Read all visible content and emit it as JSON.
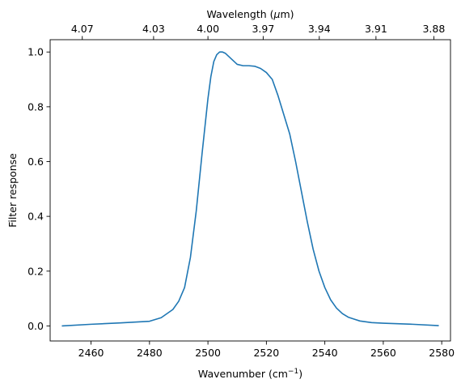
{
  "chart_data": {
    "type": "line",
    "xlabel_text": "Wavenumber (cm",
    "xlabel_sup": "−1",
    "xlabel_close": ")",
    "ylabel": "Filter response",
    "top_xlabel_text": "Wavelength (",
    "top_xlabel_mu": "μ",
    "top_xlabel_close": "m)",
    "xlim": [
      2446,
      2583
    ],
    "ylim": [
      -0.055,
      1.045
    ],
    "x_ticks": [
      2460,
      2480,
      2500,
      2520,
      2540,
      2560,
      2580
    ],
    "x_tick_labels": [
      "2460",
      "2480",
      "2500",
      "2520",
      "2540",
      "2560",
      "2580"
    ],
    "y_ticks": [
      0.0,
      0.2,
      0.4,
      0.6,
      0.8,
      1.0
    ],
    "y_tick_labels": [
      "0.0",
      "0.2",
      "0.4",
      "0.6",
      "0.8",
      "1.0"
    ],
    "top_ticks": [
      {
        "wavenumber": 2457.0,
        "label": "4.07"
      },
      {
        "wavenumber": 2481.4,
        "label": "4.03"
      },
      {
        "wavenumber": 2500.0,
        "label": "4.00"
      },
      {
        "wavenumber": 2518.9,
        "label": "3.97"
      },
      {
        "wavenumber": 2538.1,
        "label": "3.94"
      },
      {
        "wavenumber": 2557.5,
        "label": "3.91"
      },
      {
        "wavenumber": 2577.3,
        "label": "3.88"
      }
    ],
    "series": [
      {
        "color": "#1f77b4",
        "x": [
          2450,
          2460,
          2470,
          2480,
          2484,
          2488,
          2490,
          2492,
          2494,
          2496,
          2498,
          2500,
          2501,
          2502,
          2503,
          2504,
          2505,
          2506,
          2507,
          2508,
          2510,
          2512,
          2514,
          2516,
          2518,
          2520,
          2522,
          2524,
          2526,
          2528,
          2530,
          2532,
          2534,
          2536,
          2538,
          2540,
          2542,
          2544,
          2546,
          2548,
          2550,
          2552,
          2556,
          2560,
          2570,
          2579
        ],
        "y": [
          0.0,
          0.006,
          0.011,
          0.017,
          0.03,
          0.06,
          0.09,
          0.14,
          0.25,
          0.42,
          0.63,
          0.83,
          0.91,
          0.965,
          0.99,
          1.0,
          1.0,
          0.995,
          0.985,
          0.975,
          0.955,
          0.95,
          0.95,
          0.948,
          0.94,
          0.925,
          0.9,
          0.84,
          0.77,
          0.7,
          0.6,
          0.49,
          0.38,
          0.28,
          0.2,
          0.14,
          0.095,
          0.065,
          0.045,
          0.032,
          0.025,
          0.018,
          0.012,
          0.01,
          0.006,
          0.001
        ]
      }
    ],
    "grid": false,
    "legend": "none"
  }
}
